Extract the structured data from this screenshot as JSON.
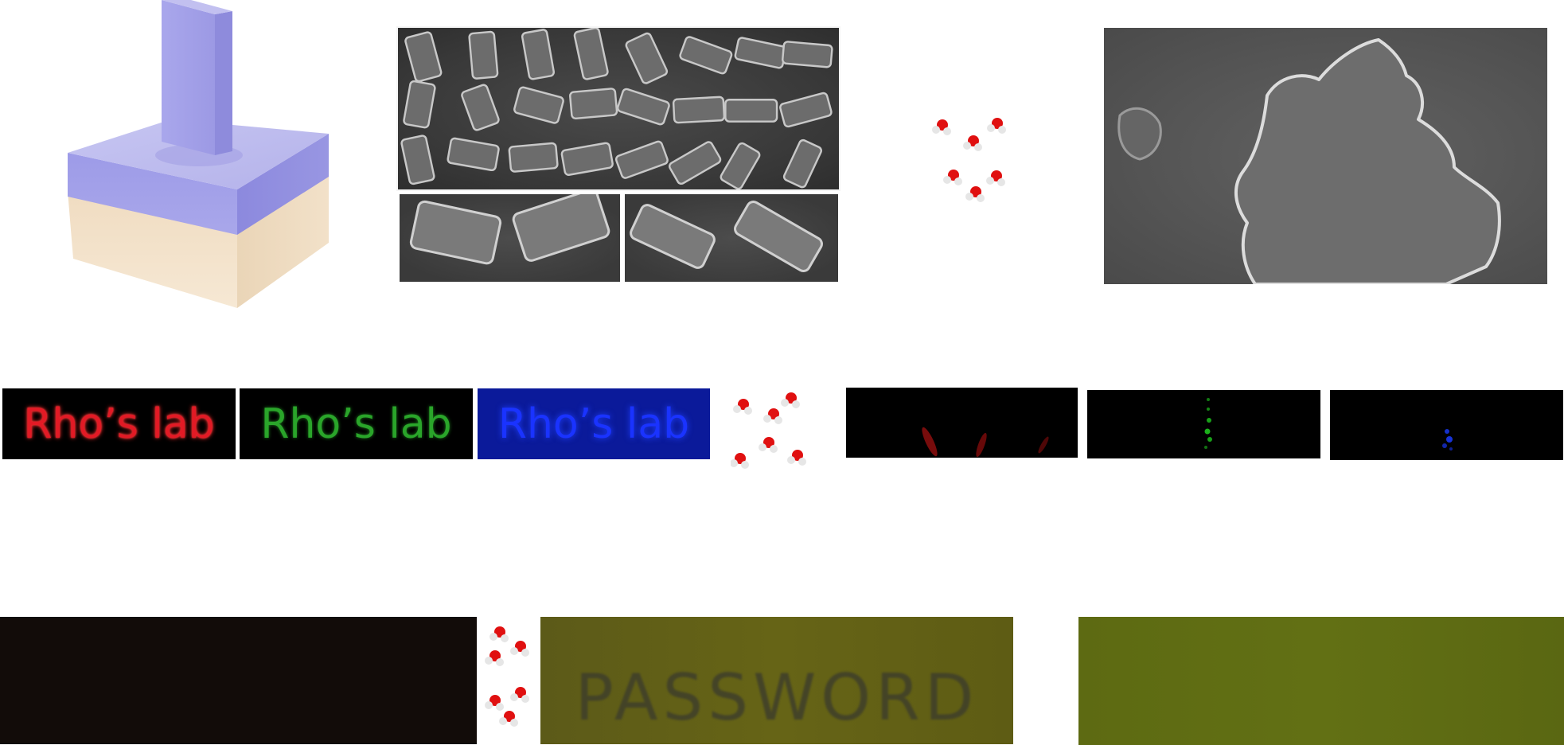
{
  "panels": {
    "schematic": {
      "name": "pillar-on-substrate-schematic"
    },
    "sem_images": {
      "count": 4
    },
    "fluorescent_labels": {
      "red": {
        "text": "Rho’s lab",
        "color": "#e21a25"
      },
      "green": {
        "text": "Rho’s lab",
        "color": "#2aa52a"
      },
      "blue": {
        "text": "Rho’s lab",
        "color": "#1a33ff"
      }
    },
    "dark_panels": {
      "red_color": "#b01010",
      "green_color": "#19a019",
      "blue_color": "#1530c8"
    },
    "password": {
      "text": "PASSWORD"
    },
    "hidden_text_panel": {
      "color": "#120c09"
    },
    "olive_panel": {
      "color": "#5f6c13"
    }
  },
  "icons": {
    "water_molecule": "water-molecule-icon"
  }
}
